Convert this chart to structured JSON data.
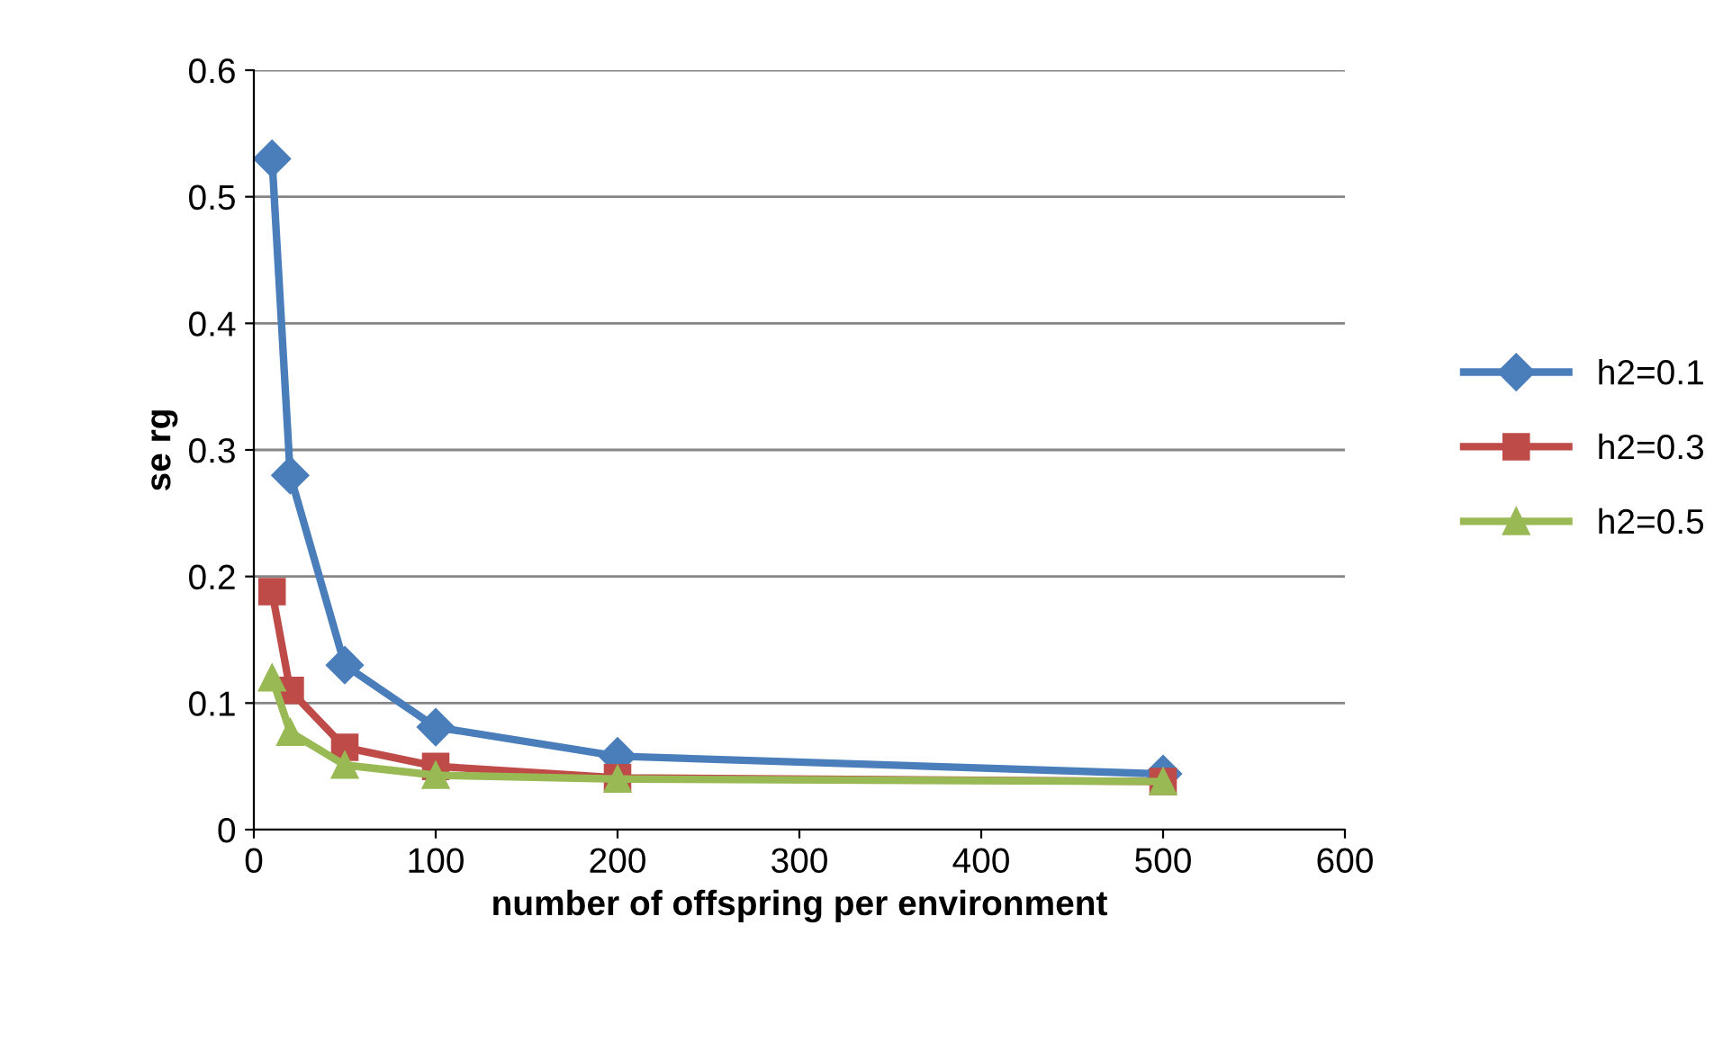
{
  "chart_data": {
    "type": "line",
    "xlabel": "number of offspring per environment",
    "ylabel": "se rg",
    "x": [
      10,
      20,
      50,
      100,
      200,
      500
    ],
    "series": [
      {
        "name": "h2=0.1",
        "color": "#4a7ebb",
        "marker": "diamond",
        "values": [
          0.53,
          0.28,
          0.13,
          0.081,
          0.058,
          0.044
        ]
      },
      {
        "name": "h2=0.3",
        "color": "#be4b48",
        "marker": "square",
        "values": [
          0.188,
          0.11,
          0.065,
          0.05,
          0.041,
          0.038
        ]
      },
      {
        "name": "h2=0.5",
        "color": "#98b954",
        "marker": "triangle",
        "values": [
          0.12,
          0.077,
          0.051,
          0.043,
          0.04,
          0.038
        ]
      }
    ],
    "xlim": [
      0,
      600
    ],
    "xticks": [
      0,
      100,
      200,
      300,
      400,
      500,
      600
    ],
    "ylim": [
      0,
      0.6
    ],
    "yticks": [
      0,
      0.1,
      0.2,
      0.3,
      0.4,
      0.5,
      0.6
    ],
    "grid": "y",
    "legend": "right",
    "line_style": "solid"
  }
}
